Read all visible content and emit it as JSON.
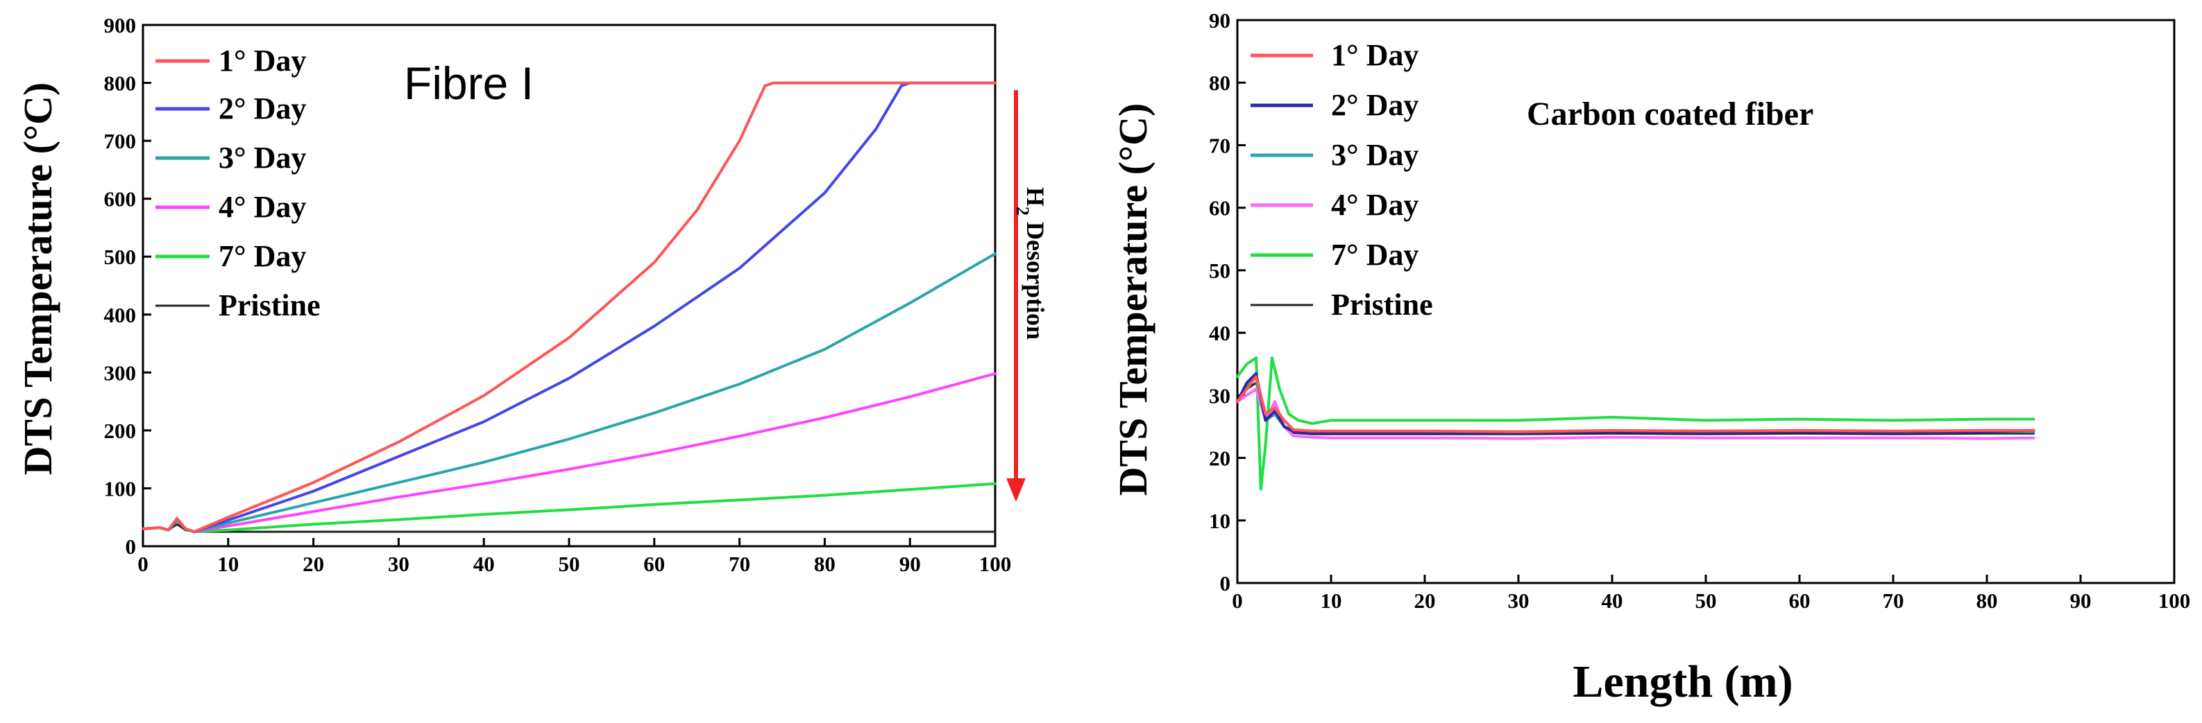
{
  "chart_data": [
    {
      "type": "line",
      "title": "",
      "xlabel": "",
      "ylabel": "DTS Temperature (°C)",
      "xlim": [
        0,
        100
      ],
      "ylim": [
        0,
        900
      ],
      "xticks": [
        0,
        10,
        20,
        30,
        40,
        50,
        60,
        70,
        80,
        90,
        100
      ],
      "yticks": [
        0,
        100,
        200,
        300,
        400,
        500,
        600,
        700,
        800,
        900
      ],
      "annotation": "Fibre I",
      "arrow_label_main": "H",
      "arrow_label_sub": "2",
      "arrow_label_rest": " Desorption",
      "legend_position": "top-left",
      "series": [
        {
          "name": "1° Day",
          "color": "#ff5555",
          "x": [
            0,
            2,
            3,
            4,
            5,
            6,
            10,
            20,
            30,
            40,
            50,
            60,
            65,
            70,
            73,
            74,
            80,
            90,
            100
          ],
          "y": [
            30,
            32,
            28,
            48,
            30,
            25,
            50,
            110,
            180,
            260,
            360,
            490,
            580,
            700,
            795,
            800,
            800,
            800,
            800
          ]
        },
        {
          "name": "2° Day",
          "color": "#4646e8",
          "x": [
            0,
            2,
            3,
            4,
            5,
            6,
            10,
            20,
            30,
            40,
            50,
            60,
            70,
            80,
            86,
            88,
            89,
            90,
            100
          ],
          "y": [
            30,
            32,
            28,
            48,
            30,
            25,
            45,
            95,
            155,
            215,
            290,
            380,
            480,
            610,
            720,
            770,
            795,
            800,
            800
          ]
        },
        {
          "name": "3° Day",
          "color": "#2aa6a6",
          "x": [
            0,
            2,
            3,
            4,
            5,
            6,
            10,
            20,
            30,
            40,
            50,
            60,
            70,
            80,
            90,
            100
          ],
          "y": [
            30,
            32,
            28,
            45,
            30,
            25,
            40,
            75,
            110,
            145,
            185,
            230,
            280,
            340,
            420,
            505
          ]
        },
        {
          "name": "4° Day",
          "color": "#ff44ff",
          "x": [
            0,
            2,
            3,
            4,
            5,
            6,
            10,
            20,
            30,
            40,
            50,
            60,
            70,
            80,
            90,
            100
          ],
          "y": [
            30,
            32,
            28,
            45,
            30,
            25,
            35,
            60,
            85,
            108,
            133,
            160,
            190,
            222,
            258,
            298
          ]
        },
        {
          "name": "7° Day",
          "color": "#22dd44",
          "x": [
            0,
            2,
            3,
            4,
            5,
            6,
            10,
            20,
            30,
            40,
            50,
            60,
            70,
            80,
            90,
            100
          ],
          "y": [
            30,
            32,
            28,
            45,
            30,
            25,
            28,
            38,
            46,
            55,
            63,
            72,
            80,
            88,
            98,
            108
          ]
        },
        {
          "name": "Pristine",
          "color": "#222222",
          "x": [
            0,
            2,
            3,
            4,
            5,
            6,
            10,
            20,
            30,
            40,
            50,
            60,
            70,
            80,
            90,
            100
          ],
          "y": [
            30,
            32,
            28,
            38,
            28,
            25,
            25,
            25,
            25,
            25,
            25,
            25,
            25,
            25,
            25,
            25
          ]
        }
      ]
    },
    {
      "type": "line",
      "title": "",
      "xlabel": "Length (m)",
      "ylabel": "DTS Temperature (°C)",
      "xlim": [
        0,
        100
      ],
      "ylim": [
        0,
        90
      ],
      "xticks": [
        0,
        10,
        20,
        30,
        40,
        50,
        60,
        70,
        80,
        90,
        100
      ],
      "yticks": [
        0,
        10,
        20,
        30,
        40,
        50,
        60,
        70,
        80,
        90
      ],
      "annotation": "Carbon coated fiber",
      "legend_position": "top-left",
      "series": [
        {
          "name": "1° Day",
          "color": "#ff5555",
          "x": [
            0,
            1,
            2,
            3,
            4,
            5,
            6,
            8,
            10,
            20,
            30,
            40,
            50,
            60,
            70,
            80,
            85
          ],
          "y": [
            29,
            31,
            33,
            27,
            28,
            26,
            24.5,
            24.3,
            24.3,
            24.3,
            24.2,
            24.4,
            24.3,
            24.4,
            24.3,
            24.4,
            24.4
          ]
        },
        {
          "name": "2° Day",
          "color": "#2a2aa8",
          "x": [
            0,
            1,
            2,
            3,
            4,
            5,
            6,
            8,
            10,
            20,
            30,
            40,
            50,
            60,
            70,
            80,
            85
          ],
          "y": [
            29,
            32,
            33.5,
            26,
            27.5,
            25,
            24.2,
            24,
            24,
            24,
            24,
            24.2,
            24,
            24.2,
            24,
            24.2,
            24.4
          ]
        },
        {
          "name": "3° Day",
          "color": "#2aa6a6",
          "x": [
            0,
            1,
            2,
            3,
            4,
            5,
            6,
            8,
            10,
            20,
            30,
            40,
            50,
            60,
            70,
            80,
            85
          ],
          "y": [
            29,
            31.5,
            33,
            26,
            27,
            25,
            24.5,
            24.2,
            24.2,
            24.1,
            24.1,
            24.2,
            24.1,
            24.2,
            24.1,
            24.2,
            24.2
          ]
        },
        {
          "name": "4° Day",
          "color": "#ff66ff",
          "x": [
            0,
            1,
            2,
            3,
            4,
            5,
            6,
            8,
            10,
            20,
            30,
            40,
            50,
            60,
            70,
            80,
            85
          ],
          "y": [
            29,
            30,
            31,
            26,
            29,
            25,
            23.5,
            23.3,
            23.2,
            23.2,
            23.1,
            23.3,
            23.2,
            23.2,
            23.2,
            23.1,
            23.2
          ]
        },
        {
          "name": "7° Day",
          "color": "#22dd44",
          "x": [
            0,
            1,
            2,
            2.5,
            3,
            3.7,
            4.5,
            5.5,
            6.5,
            8,
            10,
            20,
            30,
            40,
            50,
            60,
            70,
            80,
            85
          ],
          "y": [
            33,
            35,
            36,
            15,
            22,
            36,
            31,
            27,
            26,
            25.5,
            26,
            26,
            26,
            26.5,
            26,
            26.2,
            26,
            26.2,
            26.2
          ]
        },
        {
          "name": "Pristine",
          "color": "#222222",
          "x": [
            0,
            1,
            2,
            3,
            4,
            5,
            6,
            8,
            10,
            20,
            30,
            40,
            50,
            60,
            70,
            80,
            85
          ],
          "y": [
            29,
            31,
            32,
            26,
            27,
            25,
            24,
            23.8,
            23.8,
            23.8,
            23.8,
            23.9,
            23.8,
            23.9,
            23.8,
            23.9,
            23.9
          ]
        }
      ]
    }
  ]
}
